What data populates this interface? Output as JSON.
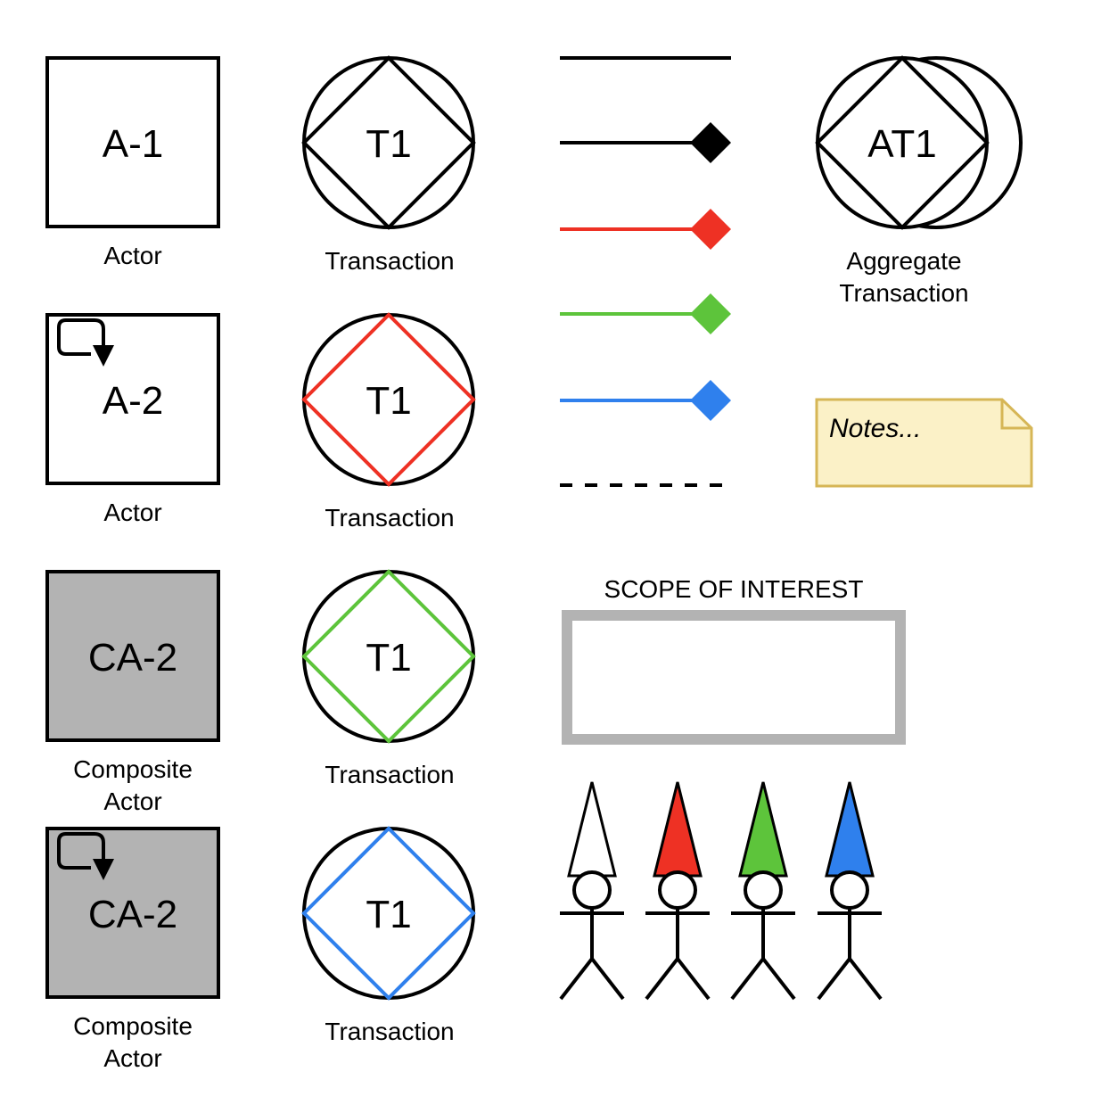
{
  "colors": {
    "black": "#000000",
    "red": "#ee3124",
    "green": "#5dc43b",
    "blue": "#2f80ed",
    "composite_fill": "#b3b3b3",
    "scope_border": "#b3b3b3",
    "note_fill": "#fbf1c7",
    "note_border": "#d6b656"
  },
  "actors": [
    {
      "label": "A-1",
      "caption": [
        "Actor"
      ],
      "composite": false,
      "self_activating": false
    },
    {
      "label": "A-2",
      "caption": [
        "Actor"
      ],
      "composite": false,
      "self_activating": true
    },
    {
      "label": "CA-2",
      "caption": [
        "Composite",
        "Actor"
      ],
      "composite": true,
      "self_activating": false
    },
    {
      "label": "CA-2",
      "caption": [
        "Composite",
        "Actor"
      ],
      "composite": true,
      "self_activating": true
    }
  ],
  "transactions": [
    {
      "label": "T1",
      "caption": "Transaction",
      "diamond_color": "black"
    },
    {
      "label": "T1",
      "caption": "Transaction",
      "diamond_color": "red"
    },
    {
      "label": "T1",
      "caption": "Transaction",
      "diamond_color": "green"
    },
    {
      "label": "T1",
      "caption": "Transaction",
      "diamond_color": "blue"
    }
  ],
  "links": [
    {
      "kind": "solid-line",
      "color": "black",
      "endpoint": "none"
    },
    {
      "kind": "diamond-link",
      "color": "black",
      "endpoint": "diamond"
    },
    {
      "kind": "diamond-link",
      "color": "red",
      "endpoint": "diamond"
    },
    {
      "kind": "diamond-link",
      "color": "green",
      "endpoint": "diamond"
    },
    {
      "kind": "diamond-link",
      "color": "blue",
      "endpoint": "diamond"
    },
    {
      "kind": "dashed-line",
      "color": "black",
      "endpoint": "none"
    }
  ],
  "aggregate": {
    "label": "AT1",
    "caption": [
      "Aggregate",
      "Transaction"
    ]
  },
  "note": {
    "text": "Notes..."
  },
  "scope": {
    "title": "SCOPE OF INTEREST"
  },
  "persons": [
    {
      "hat_color": "white"
    },
    {
      "hat_color": "red"
    },
    {
      "hat_color": "green"
    },
    {
      "hat_color": "blue"
    }
  ]
}
